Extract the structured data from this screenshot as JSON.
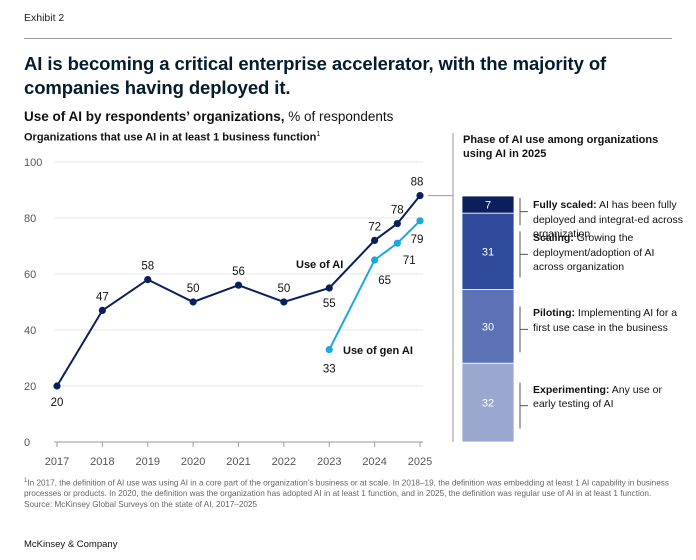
{
  "exhibit": "Exhibit 2",
  "headline": "AI is becoming a critical enterprise accelerator, with the majority of companies having deployed it.",
  "subtitle": {
    "bold": "Use of AI by respondents’ organizations,",
    "rest": " % of respondents"
  },
  "left_panel_title": "Organizations that use AI in at least 1 business function",
  "left_panel_title_sup": "1",
  "right_panel_title": "Phase of AI use among organizations using AI in 2025",
  "footnotes": {
    "note_sup": "1",
    "note": "In 2017, the definition of AI use was using AI in a core part of the organization’s business or at scale. In 2018–19, the definition was embedding at least 1 AI capability in business processes or products. In 2020, the definition was the organization has adopted AI in at least 1 function, and in 2025, the definition was regular use of AI in at least 1 function.",
    "source": "Source: McKinsey Global Surveys on the state of AI, 2017–2025"
  },
  "brand": "McKinsey & Company",
  "colors": {
    "use_of_ai": "#0b1f5c",
    "use_of_gen_ai": "#1ba8e0",
    "fully_scaled": "#0b1f5c",
    "scaling": "#2f4a9a",
    "piloting": "#5b73b5",
    "experimenting": "#9aa8d0",
    "axis": "#9a9a9a",
    "grid": "#e4e4e4"
  },
  "chart_data": [
    {
      "type": "line",
      "title": "Organizations that use AI in at least 1 business function",
      "x_tick_labels": [
        "2017",
        "2018",
        "2019",
        "2020",
        "2021",
        "2022",
        "2023",
        "2024",
        "2025"
      ],
      "ylim": [
        0,
        100
      ],
      "y_ticks": [
        0,
        20,
        40,
        60,
        80,
        100
      ],
      "grid": true,
      "series": [
        {
          "name": "Use of AI",
          "points": [
            {
              "x": 2017,
              "y": 20,
              "label": "20"
            },
            {
              "x": 2018,
              "y": 47,
              "label": "47"
            },
            {
              "x": 2019,
              "y": 58,
              "label": "58"
            },
            {
              "x": 2020,
              "y": 50,
              "label": "50"
            },
            {
              "x": 2021,
              "y": 56,
              "label": "56"
            },
            {
              "x": 2022,
              "y": 50,
              "label": "50"
            },
            {
              "x": 2023,
              "y": 55,
              "label": "55"
            },
            {
              "x": 2024,
              "y": 72,
              "label": "72"
            },
            {
              "x": 2024.5,
              "y": 78,
              "label": "78"
            },
            {
              "x": 2025,
              "y": 88,
              "label": "88"
            }
          ]
        },
        {
          "name": "Use of gen AI",
          "points": [
            {
              "x": 2023,
              "y": 33,
              "label": "33"
            },
            {
              "x": 2024,
              "y": 65,
              "label": "65"
            },
            {
              "x": 2024.5,
              "y": 71,
              "label": "71"
            },
            {
              "x": 2025,
              "y": 79,
              "label": "79"
            }
          ]
        }
      ]
    },
    {
      "type": "bar",
      "stacked": true,
      "title": "Phase of AI use among organizations using AI in 2025",
      "segments": [
        {
          "value": 7,
          "label": "7",
          "name": "Fully scaled:",
          "description": " AI has been fully deployed and integrat-ed across organization"
        },
        {
          "value": 31,
          "label": "31",
          "name": "Scaling:",
          "description": " Growing the deployment/adoption of AI across organization"
        },
        {
          "value": 30,
          "label": "30",
          "name": "Piloting:",
          "description": " Implementing AI for a first use case in the business"
        },
        {
          "value": 32,
          "label": "32",
          "name": "Experimenting:",
          "description": " Any use or early testing of AI"
        }
      ]
    }
  ]
}
